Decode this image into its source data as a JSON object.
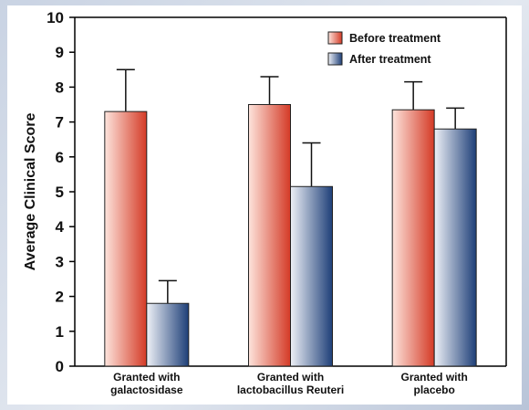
{
  "chart_data": {
    "type": "bar",
    "title": "",
    "xlabel": "",
    "ylabel": "Average Clinical Score",
    "ylim": [
      0,
      10
    ],
    "yticks": [
      "0",
      "1",
      "2",
      "3",
      "4",
      "5",
      "6",
      "7",
      "8",
      "9",
      "10"
    ],
    "categories": [
      [
        "Granted with",
        "galactosidase"
      ],
      [
        "Granted with",
        "lactobacillus Reuteri"
      ],
      [
        "Granted with",
        "placebo"
      ]
    ],
    "series": [
      {
        "name": "Before treatment",
        "values": [
          7.3,
          7.5,
          7.35
        ],
        "error": [
          1.2,
          0.8,
          0.8
        ],
        "colors": {
          "light": "#fde4dc",
          "dark": "#d43a26"
        }
      },
      {
        "name": "After treatment",
        "values": [
          1.8,
          5.15,
          6.8
        ],
        "error": [
          0.65,
          1.25,
          0.6
        ],
        "colors": {
          "light": "#eef1f7",
          "dark": "#1e3f78"
        }
      }
    ],
    "grid": false,
    "legend": "top-right"
  }
}
